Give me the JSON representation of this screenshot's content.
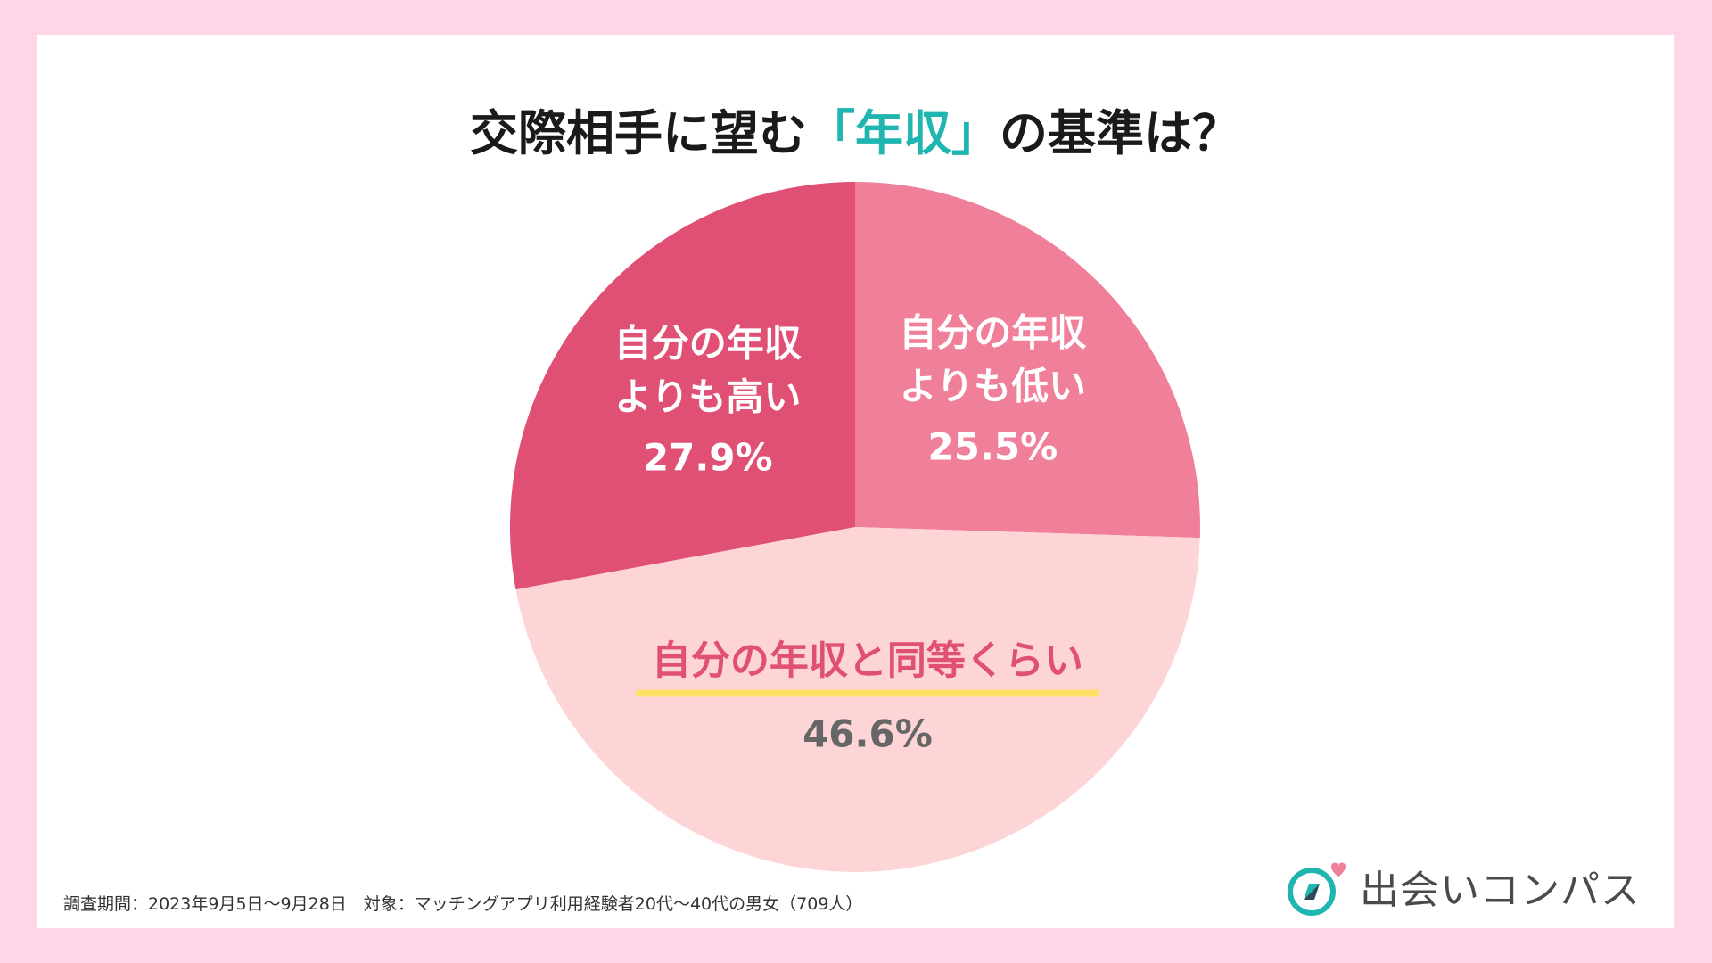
{
  "title": {
    "prefix": "交際相手に望む",
    "accent": "「年収」",
    "suffix": "の基準は？"
  },
  "colors": {
    "background": "#ffd6e8",
    "card": "#ffffff",
    "accent_teal": "#1fb5b0",
    "slice_higher": "#e05075",
    "slice_lower": "#f07f9a",
    "slice_equal": "#fdd5d6",
    "label_equal": "#e05075",
    "value_equal": "#666666",
    "underline": "#ffe066"
  },
  "chart_data": {
    "type": "pie",
    "title": "交際相手に望む「年収」の基準は？",
    "slices": [
      {
        "key": "lower",
        "label_lines": [
          "自分の年収",
          "よりも低い"
        ],
        "value_text": "25.5%",
        "value": 25.5
      },
      {
        "key": "equal",
        "label_lines": [
          "自分の年収と同等くらい"
        ],
        "value_text": "46.6%",
        "value": 46.6
      },
      {
        "key": "higher",
        "label_lines": [
          "自分の年収",
          "よりも高い"
        ],
        "value_text": "27.9%",
        "value": 27.9
      }
    ],
    "start": "12 o'clock",
    "direction": "clockwise"
  },
  "footnote": "調査期間：2023年9月5日〜9月28日　対象：マッチングアプリ利用経験者20代〜40代の男女（709人）",
  "logo": {
    "text": "出会いコンパス",
    "icon": "compass-heart-icon"
  }
}
